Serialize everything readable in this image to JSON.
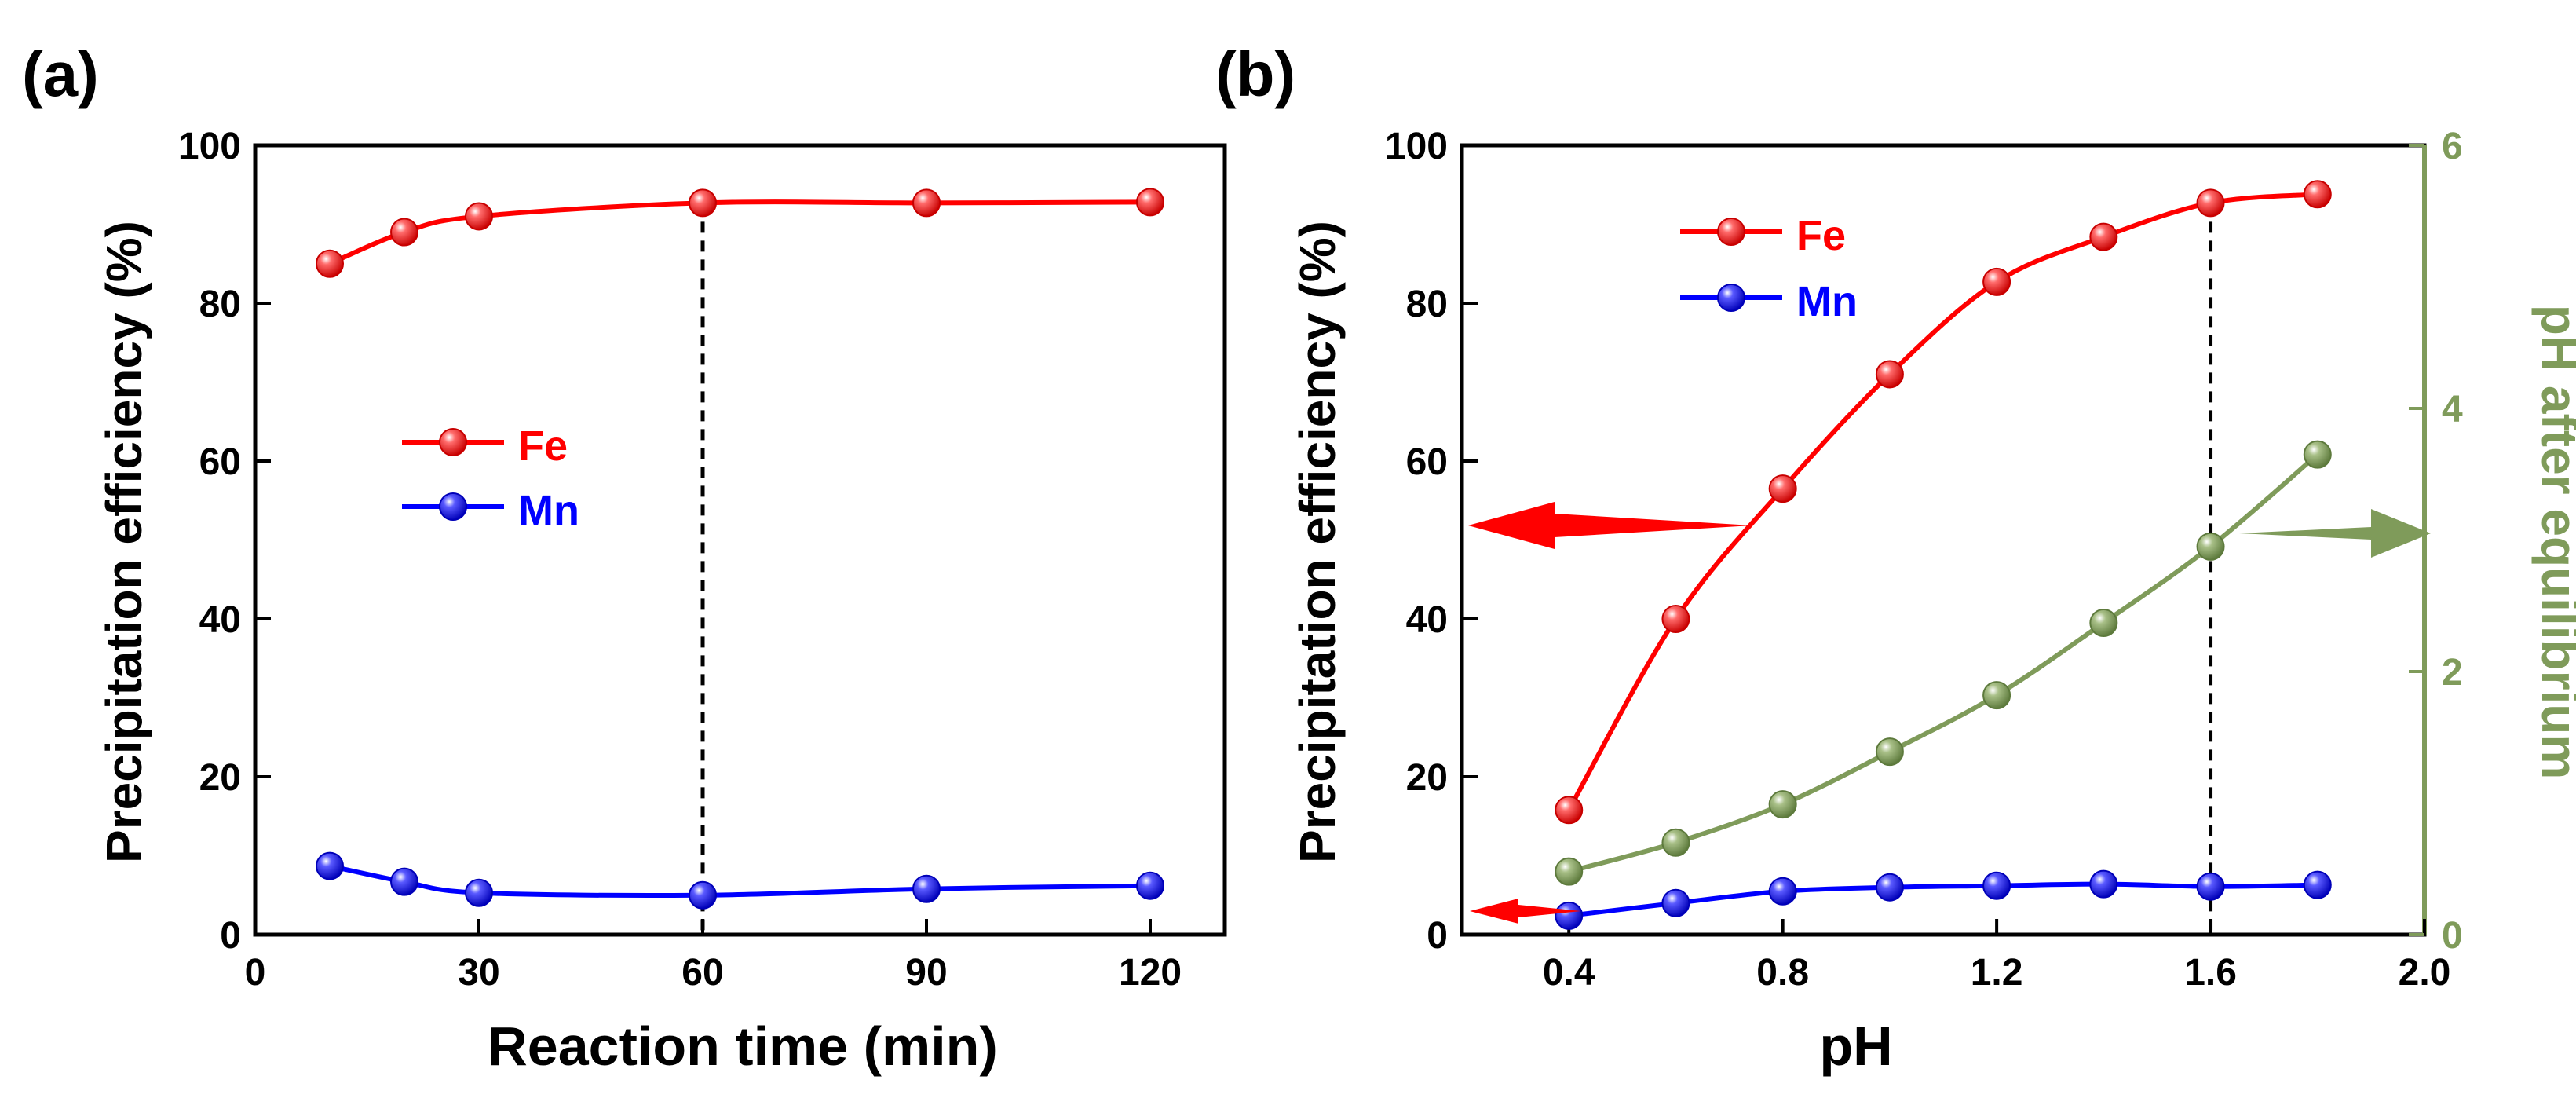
{
  "chart_data": [
    {
      "panel_label": "(a)",
      "type": "line",
      "xlabel": "Reaction time (min)",
      "ylabel": "Precipitation efficiency (%)",
      "xlim": [
        0,
        130
      ],
      "ylim": [
        0,
        100
      ],
      "xticks": [
        "0",
        "30",
        "60",
        "90",
        "120"
      ],
      "yticks": [
        "0",
        "20",
        "40",
        "60",
        "80",
        "100"
      ],
      "legend_position": "middle-left",
      "reference_line": {
        "x": 60,
        "style": "dashed"
      },
      "series": [
        {
          "name": "Fe",
          "color": "#ff0000",
          "x": [
            10,
            20,
            30,
            60,
            90,
            120
          ],
          "y": [
            85,
            89,
            91,
            92.7,
            92.7,
            92.8
          ]
        },
        {
          "name": "Mn",
          "color": "#0000ff",
          "x": [
            10,
            20,
            30,
            60,
            90,
            120
          ],
          "y": [
            8.7,
            6.7,
            5.3,
            5.0,
            5.8,
            6.2
          ]
        }
      ]
    },
    {
      "panel_label": "(b)",
      "type": "line",
      "xlabel": "pH",
      "ylabel": "Precipitation efficiency (%)",
      "y2label": "pH after equilibrium",
      "xlim": [
        0.2,
        2.0
      ],
      "ylim": [
        0,
        100
      ],
      "y2lim": [
        0,
        6
      ],
      "xticks": [
        "0.4",
        "0.8",
        "1.2",
        "1.6",
        "2.0"
      ],
      "yticks": [
        "0",
        "20",
        "40",
        "60",
        "80",
        "100"
      ],
      "y2ticks": [
        "0",
        "2",
        "4",
        "6"
      ],
      "legend_position": "top-left",
      "reference_line": {
        "x": 1.6,
        "style": "dashed"
      },
      "series": [
        {
          "name": "Fe",
          "color": "#ff0000",
          "axis": "left",
          "x": [
            0.4,
            0.6,
            0.8,
            1.0,
            1.2,
            1.4,
            1.6,
            1.8
          ],
          "y": [
            15.8,
            40,
            56.5,
            71,
            82.7,
            88.4,
            92.7,
            93.8
          ]
        },
        {
          "name": "Mn",
          "color": "#0000ff",
          "axis": "left",
          "x": [
            0.4,
            0.6,
            0.8,
            1.0,
            1.2,
            1.4,
            1.6,
            1.8
          ],
          "y": [
            2.4,
            4.0,
            5.5,
            6.0,
            6.2,
            6.4,
            6.1,
            6.3
          ]
        },
        {
          "color": "#7f9b5a",
          "axis": "right",
          "x": [
            0.4,
            0.6,
            0.8,
            1.0,
            1.2,
            1.4,
            1.6,
            1.8
          ],
          "y": [
            0.48,
            0.7,
            0.99,
            1.39,
            1.82,
            2.37,
            2.95,
            3.65
          ]
        }
      ]
    }
  ]
}
